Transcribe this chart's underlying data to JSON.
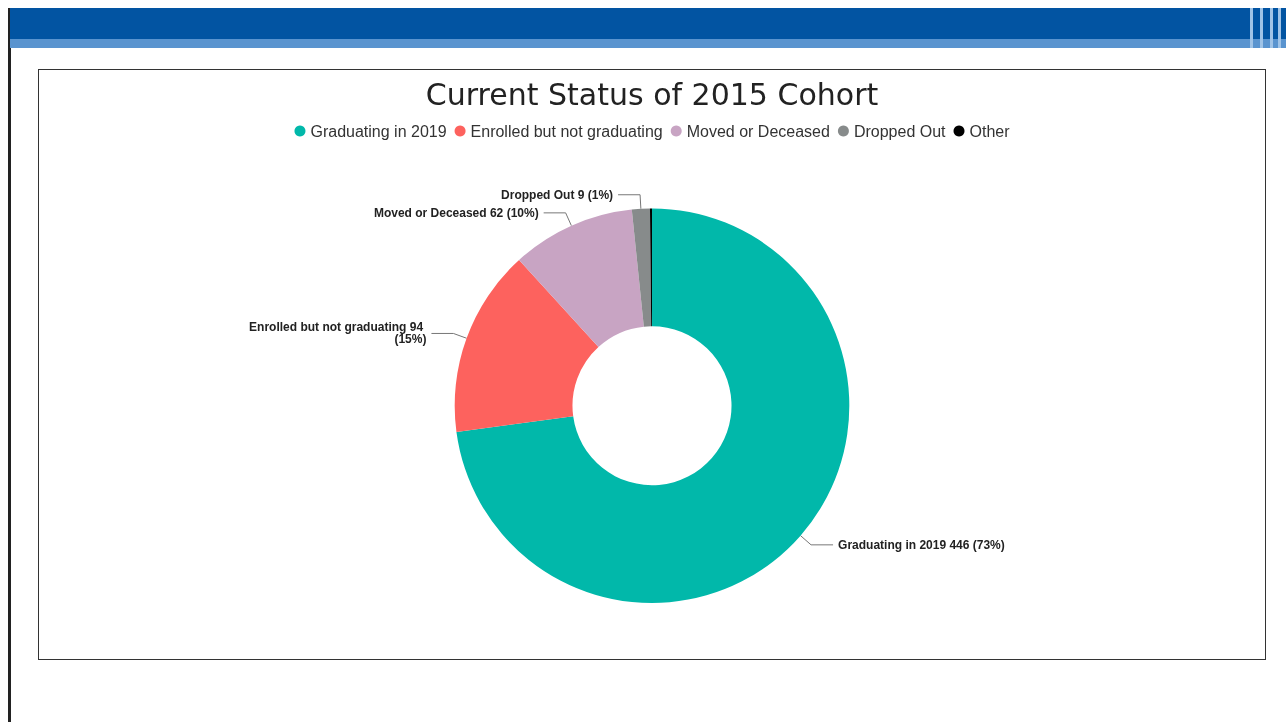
{
  "chart_data": {
    "type": "donut",
    "title": "Current Status of 2015 Cohort",
    "categories": [
      "Graduating in 2019",
      "Enrolled but not graduating",
      "Moved or Deceased",
      "Dropped Out",
      "Other"
    ],
    "values": [
      446,
      94,
      62,
      9,
      1
    ],
    "colors": [
      "#01b8aa",
      "#fd625e",
      "#c8a4c3",
      "#878b8b",
      "#000000"
    ],
    "value_labels": [
      "446 (73%)",
      "94 (15%)",
      "62 (10%)",
      "9 (1%)",
      null
    ],
    "legend": "top"
  }
}
